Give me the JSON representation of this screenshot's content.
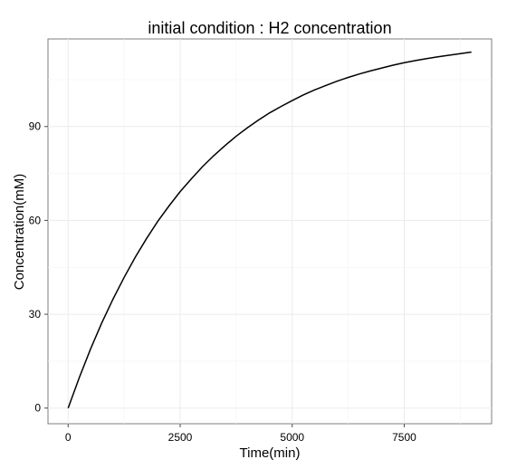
{
  "chart_data": {
    "type": "line",
    "title": "initial condition : H2 concentration",
    "xlabel": "Time(min)",
    "ylabel": "Concentration(mM)",
    "xlim": [
      -450,
      9450
    ],
    "ylim": [
      -5,
      118
    ],
    "x_ticks": [
      0,
      2500,
      5000,
      7500
    ],
    "y_ticks": [
      0,
      30,
      60,
      90
    ],
    "x_tick_labels": [
      "0",
      "2500",
      "5000",
      "7500"
    ],
    "y_tick_labels": [
      "0",
      "30",
      "60",
      "90"
    ],
    "grid": true,
    "legend": "none",
    "series": [
      {
        "color": "#000000",
        "x": [
          0,
          250,
          500,
          750,
          1000,
          1250,
          1500,
          1750,
          2000,
          2250,
          2500,
          2750,
          3000,
          3250,
          3500,
          3750,
          4000,
          4250,
          4500,
          4750,
          5000,
          5250,
          5500,
          5750,
          6000,
          6250,
          6500,
          6750,
          7000,
          7250,
          7500,
          7750,
          8000,
          8250,
          8500,
          8750,
          9000
        ],
        "y": [
          0,
          9.8,
          18.9,
          27.2,
          34.8,
          41.8,
          48.3,
          54.2,
          59.7,
          64.6,
          69.2,
          73.3,
          77.2,
          80.7,
          83.9,
          86.9,
          89.6,
          92.1,
          94.4,
          96.4,
          98.3,
          100.1,
          101.7,
          103.1,
          104.5,
          105.7,
          106.8,
          107.8,
          108.7,
          109.6,
          110.4,
          111.1,
          111.7,
          112.3,
          112.8,
          113.3,
          113.8
        ]
      }
    ]
  }
}
